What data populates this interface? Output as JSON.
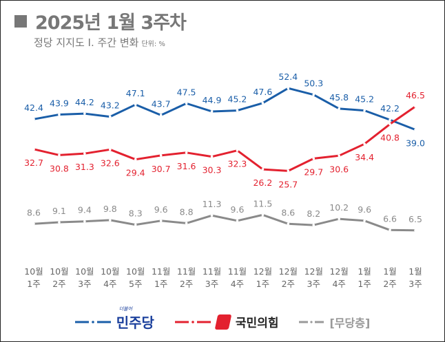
{
  "header": {
    "title": "2025년 1월 3주차",
    "subtitle": "정당 지지도 Ⅰ. 주간 변화",
    "unit": "단위: %"
  },
  "legend": {
    "dem": "민주당",
    "dem_small": "더불어",
    "ppp": "국민의힘",
    "ind": "[무당층]"
  },
  "chart_data": {
    "type": "line",
    "categories": [
      "10월 1주",
      "10월 2주",
      "10월 3주",
      "10월 4주",
      "10월 5주",
      "11월 1주",
      "11월 2주",
      "11월 3주",
      "11월 4주",
      "12월 1주",
      "12월 2주",
      "12월 3주",
      "12월 4주",
      "1월 1주",
      "1월 2주",
      "1월 3주"
    ],
    "series": [
      {
        "name": "더불어민주당",
        "color": "#1a5ea8",
        "values": [
          42.4,
          43.9,
          44.2,
          43.2,
          47.1,
          43.7,
          47.5,
          44.9,
          45.2,
          47.6,
          52.4,
          50.3,
          45.8,
          45.2,
          42.2,
          39.0
        ]
      },
      {
        "name": "국민의힘",
        "color": "#e3212f",
        "values": [
          32.7,
          30.8,
          31.3,
          32.6,
          29.4,
          30.7,
          31.6,
          30.3,
          32.3,
          26.2,
          25.7,
          29.7,
          30.6,
          34.4,
          40.8,
          46.5
        ]
      },
      {
        "name": "[무당층]",
        "color": "#8a8a8a",
        "values": [
          8.6,
          9.1,
          9.4,
          9.8,
          8.3,
          9.6,
          8.8,
          11.3,
          9.6,
          11.5,
          8.6,
          8.2,
          10.2,
          9.6,
          6.6,
          6.5
        ]
      }
    ],
    "grid": false,
    "legend_position": "bottom"
  }
}
